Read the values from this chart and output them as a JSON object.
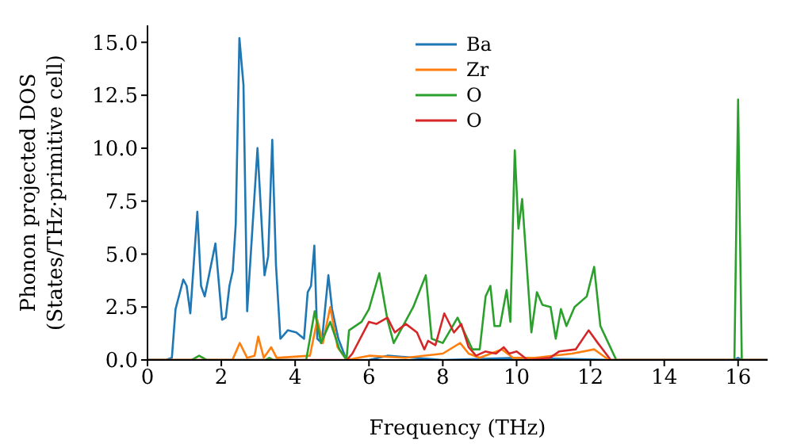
{
  "chart_data": {
    "type": "line",
    "xlabel": "Frequency (THz)",
    "ylabel": "Phonon projected DOS (States/THz·primitive cell)",
    "xlim": [
      0,
      16.8
    ],
    "ylim": [
      0,
      15.8
    ],
    "xticks": [
      0,
      2,
      4,
      6,
      8,
      10,
      12,
      14,
      16
    ],
    "yticks": [
      {
        "value": 0,
        "label": "0.0"
      },
      {
        "value": 2.5,
        "label": "2.5"
      },
      {
        "value": 5,
        "label": "5.0"
      },
      {
        "value": 7.5,
        "label": "7.5"
      },
      {
        "value": 10,
        "label": "10.0"
      },
      {
        "value": 12.5,
        "label": "12.5"
      },
      {
        "value": 15,
        "label": "15.0"
      }
    ],
    "grid": false,
    "legend": "top",
    "marker": "none",
    "line_style": "solid",
    "series": [
      {
        "name": "Ba",
        "color": "#1f77b4",
        "x": [
          0,
          0.5,
          0.66,
          0.76,
          0.97,
          1.06,
          1.16,
          1.35,
          1.45,
          1.55,
          1.84,
          2.02,
          2.12,
          2.22,
          2.31,
          2.39,
          2.49,
          2.6,
          2.7,
          2.98,
          3.17,
          3.27,
          3.38,
          3.48,
          3.6,
          3.8,
          4.03,
          4.24,
          4.34,
          4.43,
          4.52,
          4.6,
          4.72,
          4.9,
          5.0,
          5.17,
          5.39,
          6.0,
          6.5,
          8.0,
          10.0,
          12.5,
          15.9,
          16.0,
          16.1,
          16.8
        ],
        "values": [
          0,
          0,
          0.1,
          2.4,
          3.8,
          3.5,
          2.2,
          7.0,
          3.5,
          3.0,
          5.5,
          1.9,
          2.0,
          3.5,
          4.2,
          6.4,
          15.2,
          13.0,
          2.3,
          10.0,
          4.0,
          4.9,
          10.4,
          4.5,
          1.0,
          1.4,
          1.3,
          1.0,
          3.2,
          3.5,
          5.4,
          1.0,
          0.8,
          4.0,
          2.4,
          1.0,
          0,
          0,
          0.2,
          0,
          0.1,
          0,
          0,
          0.1,
          0,
          0
        ]
      },
      {
        "name": "Zr",
        "color": "#ff7f0e",
        "x": [
          0,
          2.3,
          2.5,
          2.7,
          2.9,
          3.0,
          3.15,
          3.35,
          3.5,
          4.4,
          4.6,
          4.75,
          4.95,
          5.15,
          5.4,
          6.0,
          7.0,
          8.0,
          8.47,
          8.7,
          9.0,
          9.3,
          9.6,
          9.9,
          10.5,
          11.5,
          12.1,
          12.5,
          16.8
        ],
        "values": [
          0,
          0,
          0.8,
          0.1,
          0.2,
          1.1,
          0.1,
          0.6,
          0.1,
          0.2,
          1.9,
          0.8,
          2.5,
          0.6,
          0,
          0.2,
          0.1,
          0.3,
          0.8,
          0.3,
          0.1,
          0.3,
          0.5,
          0.1,
          0.1,
          0.3,
          0.5,
          0,
          0
        ]
      },
      {
        "name": "O",
        "color": "#2ca02c",
        "x": [
          0,
          1.2,
          1.4,
          1.6,
          3.2,
          3.3,
          3.4,
          4.3,
          4.53,
          4.7,
          4.95,
          5.2,
          5.39,
          5.46,
          5.8,
          6.0,
          6.28,
          6.5,
          6.67,
          7.2,
          7.54,
          7.7,
          8.0,
          8.4,
          8.8,
          9.0,
          9.16,
          9.29,
          9.4,
          9.55,
          9.73,
          9.83,
          9.95,
          10.05,
          10.15,
          10.4,
          10.55,
          10.7,
          10.92,
          11.06,
          11.2,
          11.35,
          11.57,
          11.9,
          12.1,
          12.27,
          12.7,
          15.9,
          16.0,
          16.1,
          16.8
        ],
        "values": [
          0,
          0,
          0.2,
          0,
          0,
          0.1,
          0,
          0,
          2.3,
          0.8,
          1.8,
          0.5,
          0,
          1.4,
          1.8,
          2.4,
          4.1,
          1.9,
          0.8,
          2.5,
          4.0,
          1.0,
          0.8,
          2.0,
          0.5,
          0.5,
          3.0,
          3.5,
          1.6,
          1.6,
          3.3,
          1.8,
          9.9,
          6.2,
          7.6,
          1.3,
          3.2,
          2.6,
          2.5,
          1.0,
          2.4,
          1.6,
          2.5,
          3.0,
          4.4,
          1.6,
          0,
          0,
          12.3,
          0,
          0
        ]
      },
      {
        "name": "O",
        "color": "#d62728",
        "x": [
          0,
          5.4,
          5.55,
          6.0,
          6.2,
          6.5,
          6.7,
          7.0,
          7.3,
          7.5,
          7.6,
          7.8,
          8.04,
          8.3,
          8.5,
          8.7,
          8.9,
          9.15,
          9.44,
          9.65,
          9.8,
          10.0,
          10.3,
          10.9,
          11.15,
          11.6,
          11.95,
          12.2,
          12.55,
          16.8
        ],
        "values": [
          0,
          0,
          0.3,
          1.8,
          1.7,
          2.0,
          1.3,
          1.7,
          1.3,
          0.5,
          0.9,
          0.7,
          2.2,
          1.3,
          1.7,
          0.6,
          0.2,
          0.4,
          0.3,
          0.6,
          0.3,
          0.4,
          0,
          0.1,
          0.4,
          0.5,
          1.4,
          0.8,
          0,
          0
        ]
      }
    ]
  }
}
